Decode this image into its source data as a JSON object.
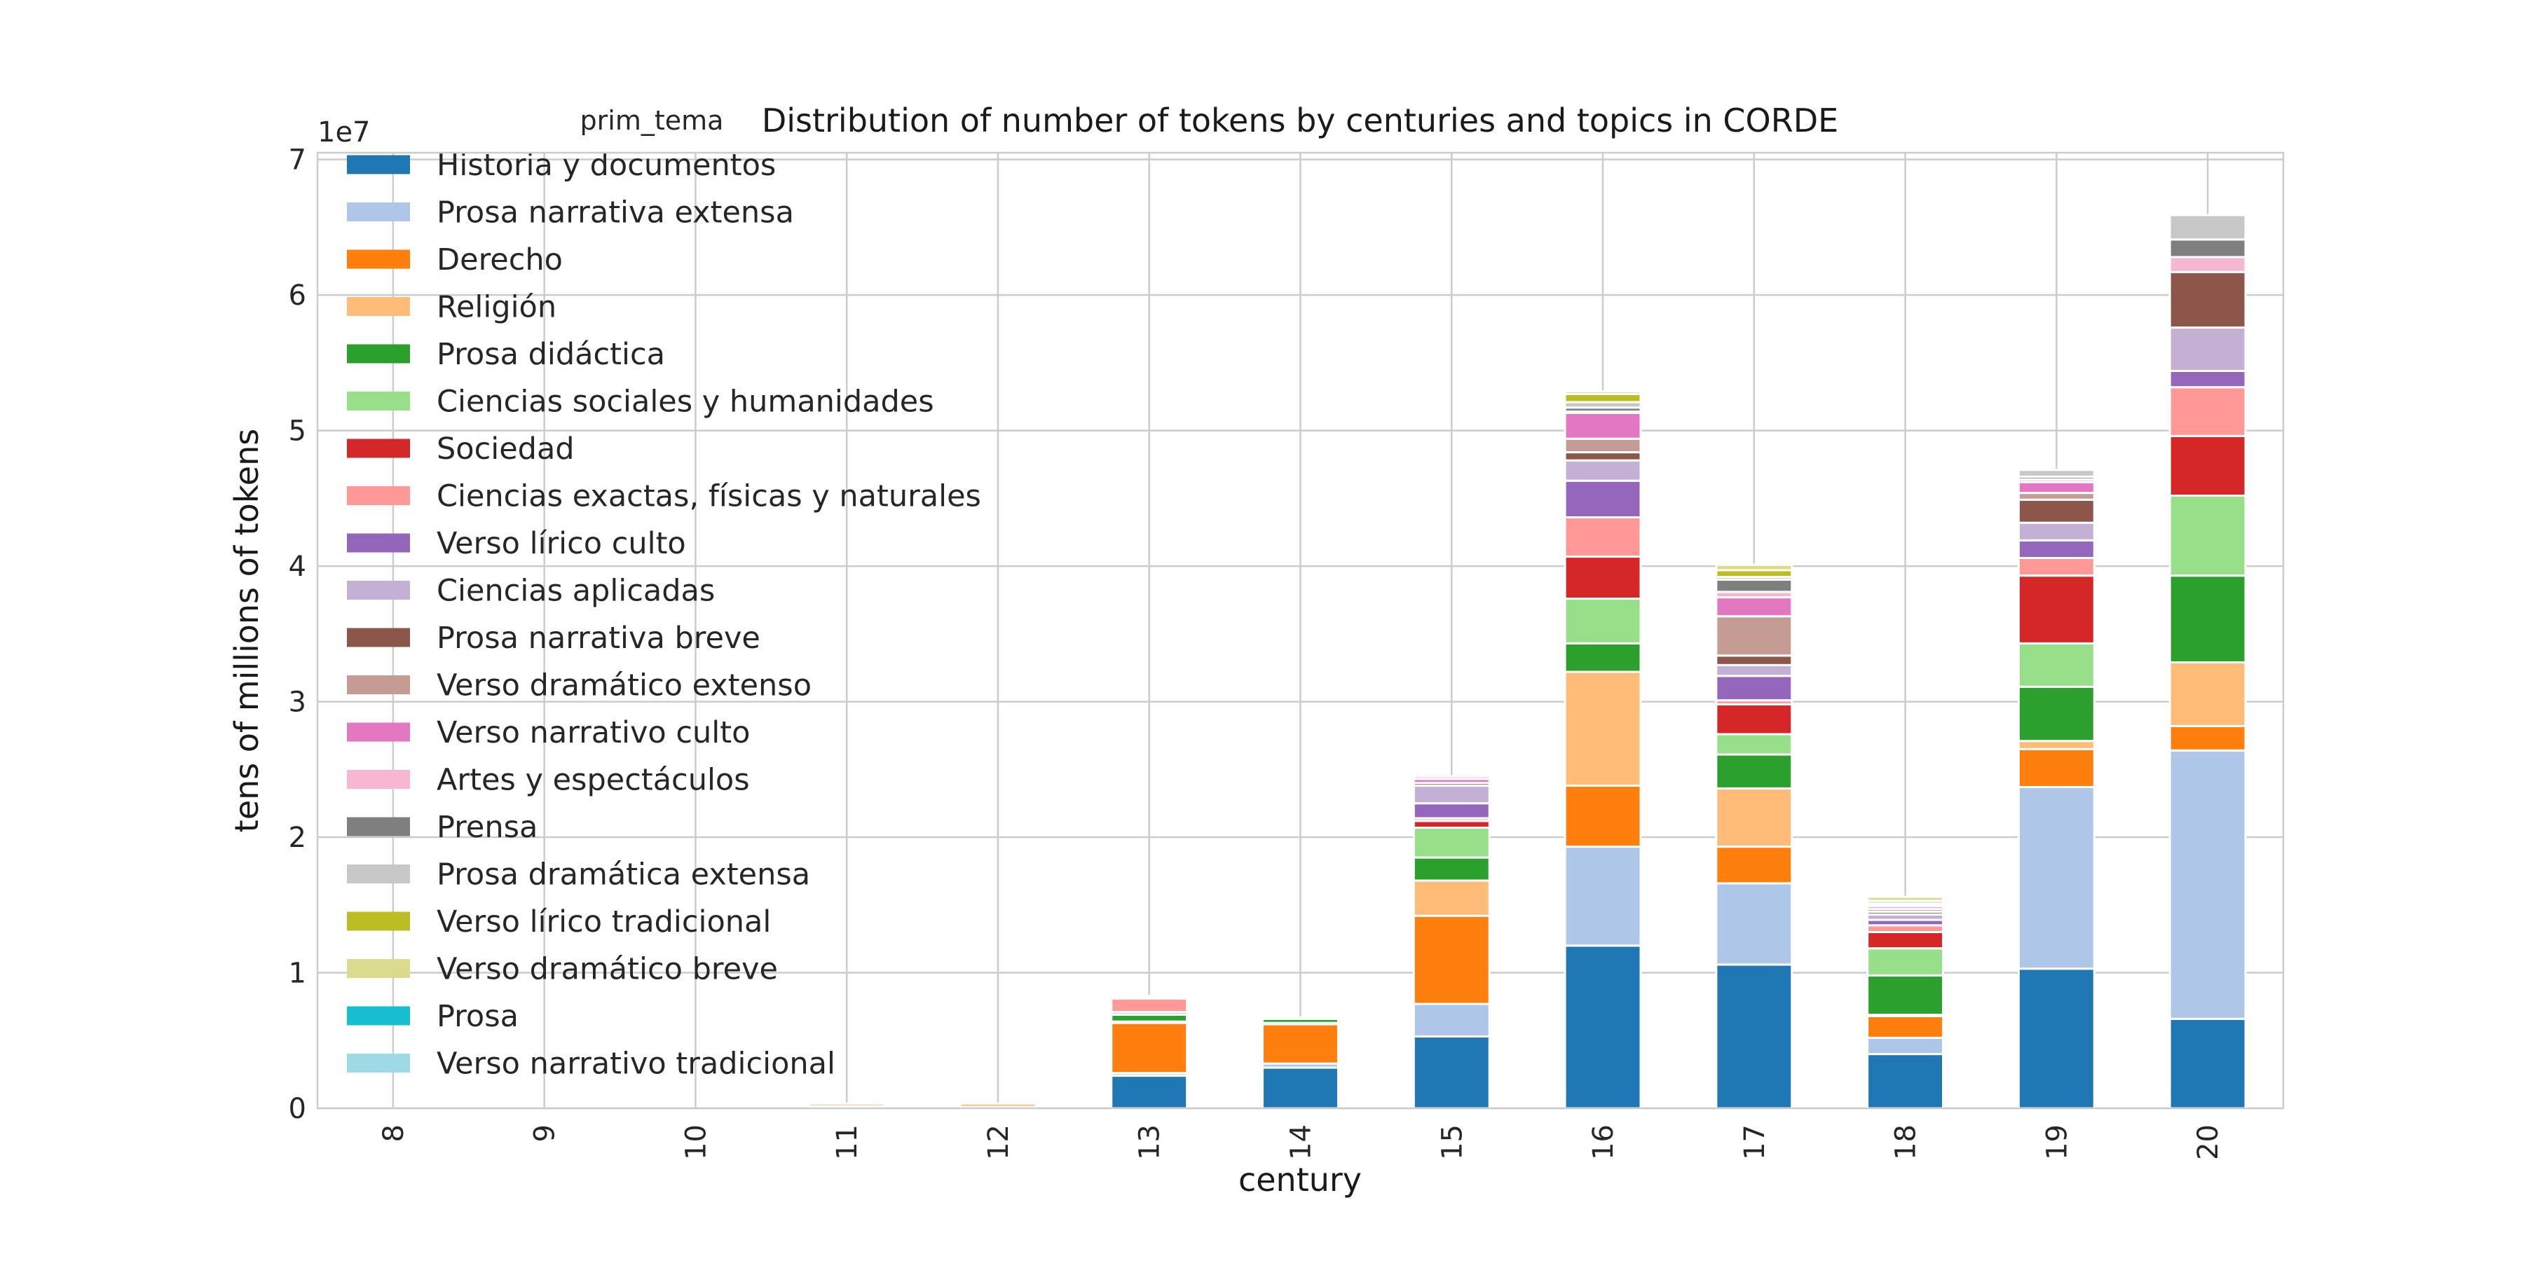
{
  "chart_data": {
    "type": "bar",
    "stacked": true,
    "title": "Distribution of number of tokens by centuries and topics in CORDE",
    "xlabel": "century",
    "ylabel": "tens of millions of tokens",
    "y_offset_label": "1e7",
    "ylim": [
      0,
      70500000
    ],
    "y_ticks": [
      0,
      1,
      2,
      3,
      4,
      5,
      6,
      7
    ],
    "y_tick_scale": 10000000,
    "grid": true,
    "legend_title": "prim_tema",
    "legend_position": "upper-left",
    "categories": [
      "8",
      "9",
      "10",
      "11",
      "12",
      "13",
      "14",
      "15",
      "16",
      "17",
      "18",
      "19",
      "20"
    ],
    "series": [
      {
        "name": "Historia y documentos",
        "color": "#1f77b4",
        "values": [
          0,
          0,
          0,
          0,
          0,
          2400000,
          3000000,
          5300000,
          12000000,
          10600000,
          4000000,
          10300000,
          6600000
        ]
      },
      {
        "name": "Prosa narrativa extensa",
        "color": "#aec7e8",
        "values": [
          0,
          0,
          0,
          0,
          0,
          200000,
          300000,
          2400000,
          7300000,
          6000000,
          1200000,
          13400000,
          19800000
        ]
      },
      {
        "name": "Derecho",
        "color": "#ff7f0e",
        "values": [
          0,
          0,
          0,
          150000,
          100000,
          3700000,
          2900000,
          6500000,
          4500000,
          2700000,
          1600000,
          2800000,
          1800000
        ]
      },
      {
        "name": "Religión",
        "color": "#ffbb78",
        "values": [
          0,
          0,
          0,
          200000,
          250000,
          100000,
          100000,
          2600000,
          8400000,
          4300000,
          100000,
          600000,
          4700000
        ]
      },
      {
        "name": "Prosa didáctica",
        "color": "#2ca02c",
        "values": [
          0,
          0,
          0,
          0,
          0,
          500000,
          300000,
          1700000,
          2100000,
          2500000,
          2900000,
          4000000,
          6400000
        ]
      },
      {
        "name": "Ciencias sociales y humanidades",
        "color": "#98df8a",
        "values": [
          0,
          0,
          0,
          0,
          0,
          200000,
          100000,
          2200000,
          3300000,
          1500000,
          2000000,
          3200000,
          5900000
        ]
      },
      {
        "name": "Sociedad",
        "color": "#d62728",
        "values": [
          0,
          0,
          0,
          0,
          0,
          0,
          0,
          500000,
          3100000,
          2200000,
          1200000,
          5000000,
          4400000
        ]
      },
      {
        "name": "Ciencias exactas, físicas y naturales",
        "color": "#ff9896",
        "values": [
          0,
          0,
          0,
          0,
          0,
          1000000,
          0,
          200000,
          2900000,
          300000,
          500000,
          1300000,
          3600000
        ]
      },
      {
        "name": "Verso lírico culto",
        "color": "#9467bd",
        "values": [
          0,
          0,
          0,
          0,
          0,
          100000,
          0,
          1100000,
          2700000,
          1800000,
          400000,
          1300000,
          1200000
        ]
      },
      {
        "name": "Ciencias aplicadas",
        "color": "#c5b0d5",
        "values": [
          0,
          0,
          0,
          0,
          0,
          100000,
          0,
          1300000,
          1500000,
          800000,
          400000,
          1300000,
          3200000
        ]
      },
      {
        "name": "Prosa narrativa breve",
        "color": "#8c564b",
        "values": [
          0,
          0,
          0,
          0,
          0,
          0,
          0,
          200000,
          600000,
          700000,
          200000,
          1700000,
          4100000
        ]
      },
      {
        "name": "Verso dramático extenso",
        "color": "#c49c94",
        "values": [
          0,
          0,
          0,
          0,
          0,
          0,
          0,
          0,
          1000000,
          2900000,
          200000,
          500000,
          0
        ]
      },
      {
        "name": "Verso narrativo culto",
        "color": "#e377c2",
        "values": [
          0,
          0,
          0,
          0,
          0,
          0,
          0,
          300000,
          1900000,
          1400000,
          200000,
          800000,
          0
        ]
      },
      {
        "name": "Artes y espectáculos",
        "color": "#f7b6d2",
        "values": [
          0,
          0,
          0,
          0,
          0,
          0,
          0,
          200000,
          100000,
          400000,
          100000,
          200000,
          1100000
        ]
      },
      {
        "name": "Prensa",
        "color": "#7f7f7f",
        "values": [
          0,
          0,
          0,
          0,
          0,
          0,
          0,
          0,
          300000,
          900000,
          100000,
          200000,
          1300000
        ]
      },
      {
        "name": "Prosa dramática extensa",
        "color": "#c7c7c7",
        "values": [
          0,
          0,
          0,
          0,
          0,
          0,
          0,
          0,
          400000,
          200000,
          200000,
          500000,
          1800000
        ]
      },
      {
        "name": "Verso lírico tradicional",
        "color": "#bcbd22",
        "values": [
          0,
          0,
          0,
          0,
          0,
          0,
          0,
          0,
          600000,
          500000,
          0,
          0,
          0
        ]
      },
      {
        "name": "Verso dramático breve",
        "color": "#dbdb8d",
        "values": [
          0,
          0,
          0,
          0,
          0,
          0,
          0,
          0,
          200000,
          400000,
          300000,
          0,
          0
        ]
      },
      {
        "name": "Prosa",
        "color": "#17becf",
        "values": [
          0,
          0,
          0,
          0,
          0,
          0,
          0,
          0,
          0,
          0,
          0,
          0,
          0
        ]
      },
      {
        "name": "Verso narrativo tradicional",
        "color": "#9edae5",
        "values": [
          0,
          0,
          0,
          0,
          0,
          0,
          0,
          0,
          0,
          0,
          0,
          0,
          0
        ]
      }
    ]
  }
}
